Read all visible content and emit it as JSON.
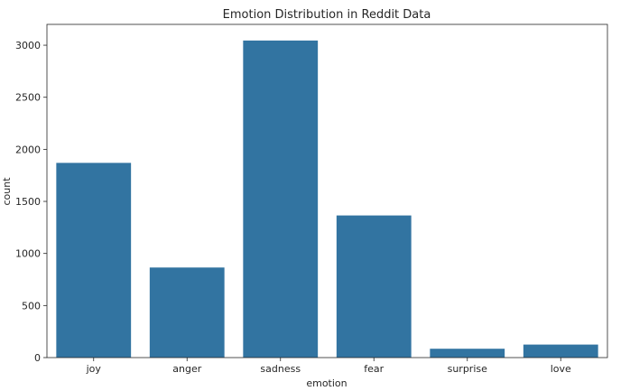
{
  "chart_data": {
    "type": "bar",
    "title": "Emotion Distribution in Reddit Data",
    "xlabel": "emotion",
    "ylabel": "count",
    "categories": [
      "joy",
      "anger",
      "sadness",
      "fear",
      "surprise",
      "love"
    ],
    "values": [
      1870,
      865,
      3045,
      1365,
      85,
      125
    ],
    "ylim": [
      0,
      3200
    ],
    "yticks": [
      0,
      500,
      1000,
      1500,
      2000,
      2500,
      3000
    ],
    "grid": false,
    "bar_color": "#3274a1"
  }
}
